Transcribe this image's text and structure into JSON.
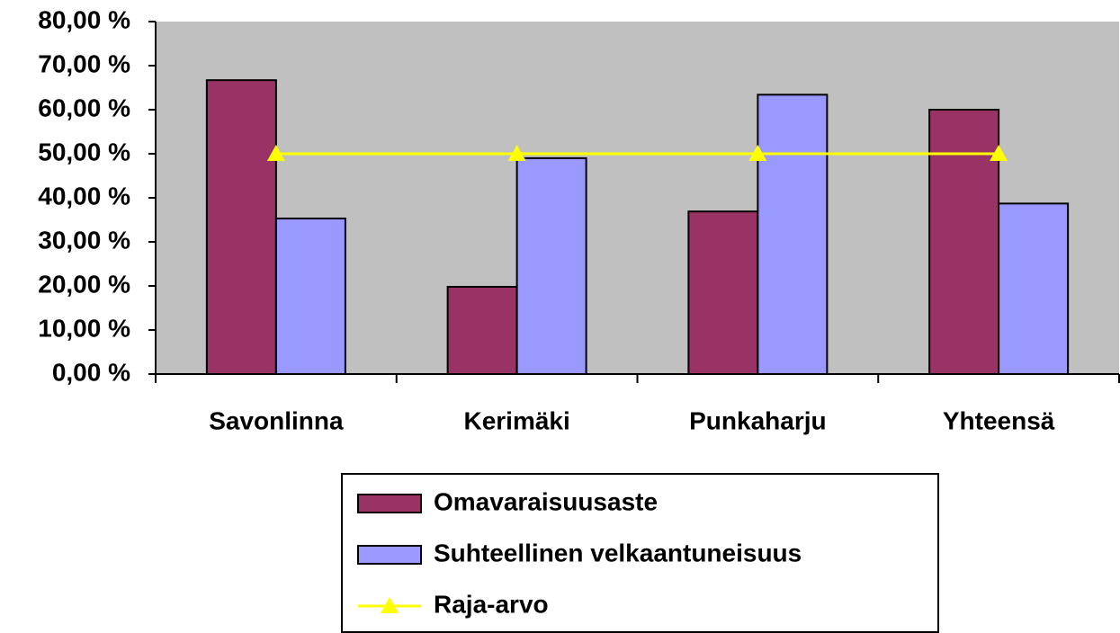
{
  "chart_data": {
    "type": "bar",
    "categories": [
      "Savonlinna",
      "Kerimäki",
      "Punkaharju",
      "Yhteensä"
    ],
    "series": [
      {
        "name": "Omavaraisuusaste",
        "color": "#993366",
        "values": [
          66.7,
          19.8,
          36.9,
          60.0
        ]
      },
      {
        "name": "Suhteellinen velkaantuneisuus",
        "color": "#9999ff",
        "values": [
          35.3,
          49.0,
          63.4,
          38.7
        ]
      },
      {
        "name": "Raja-arvo",
        "type": "line",
        "color": "#ffff00",
        "values": [
          50,
          50,
          50,
          50
        ]
      }
    ],
    "ylim": [
      0,
      80
    ],
    "yticks": [
      {
        "value": 0,
        "label": "0,00 %"
      },
      {
        "value": 10,
        "label": "10,00 %"
      },
      {
        "value": 20,
        "label": "20,00 %"
      },
      {
        "value": 30,
        "label": "30,00 %"
      },
      {
        "value": 40,
        "label": "40,00 %"
      },
      {
        "value": 50,
        "label": "50,00 %"
      },
      {
        "value": 60,
        "label": "60,00 %"
      },
      {
        "value": 70,
        "label": "70,00 %"
      },
      {
        "value": 80,
        "label": "80,00 %"
      }
    ],
    "plot_background": "#c0c0c0",
    "legend": "bottom"
  }
}
